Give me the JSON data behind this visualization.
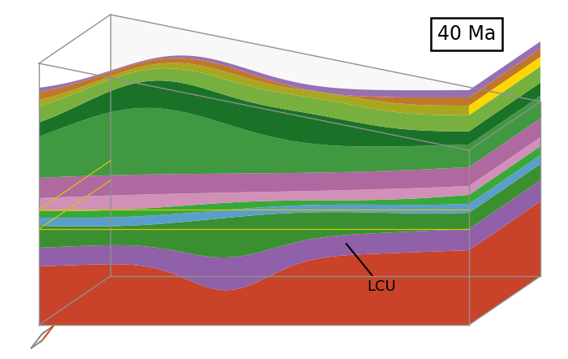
{
  "title": "40 Ma",
  "annotation_lcu": "LCU",
  "bg_color": "#ffffff",
  "box_color": "#888888",
  "yellow_line_color": "#d4c800",
  "compass_colors": {
    "arrow_orange": "#cc4400",
    "arrow_gray": "#888888"
  }
}
